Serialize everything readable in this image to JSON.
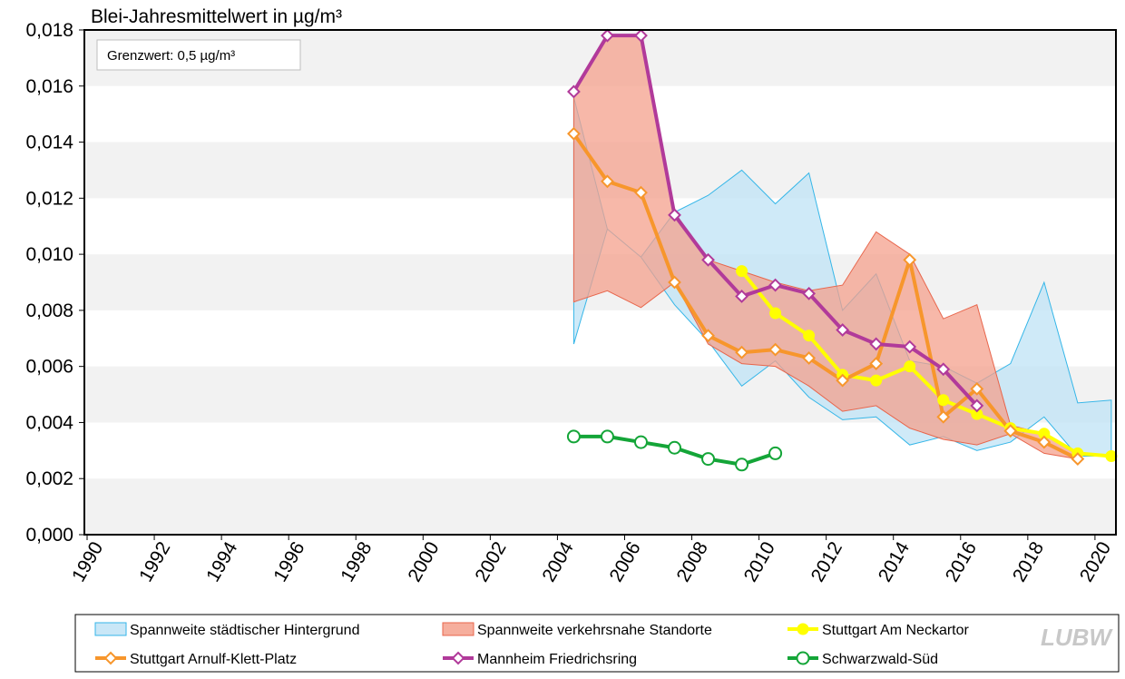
{
  "chart_data": {
    "type": "line",
    "title": "Blei-Jahresmittelwert in µg/m³",
    "annotation": "Grenzwert: 0,5 µg/m³",
    "logo": "LUBW",
    "xlabel": "",
    "ylabel": "",
    "xlim": [
      1990,
      2020
    ],
    "ylim": [
      0,
      0.018
    ],
    "x_ticks": [
      "1990",
      "1992",
      "1994",
      "1996",
      "1998",
      "2000",
      "2002",
      "2004",
      "2006",
      "2008",
      "2010",
      "2012",
      "2014",
      "2016",
      "2018",
      "2020"
    ],
    "y_ticks": [
      "0,000",
      "0,002",
      "0,004",
      "0,006",
      "0,008",
      "0,010",
      "0,012",
      "0,014",
      "0,016",
      "0,018"
    ],
    "grid": "alternating horizontal bands",
    "legend_position": "bottom",
    "ranges": [
      {
        "name": "Spannweite städtischer Hintergrund",
        "fill": "#bfe3f6",
        "stroke": "#35b6e8",
        "x": [
          2004,
          2005,
          2006,
          2007,
          2008,
          2009,
          2010,
          2011,
          2012,
          2013,
          2014,
          2015,
          2016,
          2017,
          2018,
          2019,
          2020
        ],
        "upper": [
          0.0156,
          0.0109,
          0.0099,
          0.0115,
          0.0121,
          0.013,
          0.0118,
          0.0129,
          0.008,
          0.0093,
          0.0062,
          0.006,
          0.0054,
          0.0061,
          0.009,
          0.0047,
          0.0048
        ],
        "lower": [
          0.0068,
          0.0109,
          0.0099,
          0.0082,
          0.0069,
          0.0053,
          0.0062,
          0.0049,
          0.0041,
          0.0042,
          0.0032,
          0.0035,
          0.003,
          0.0033,
          0.0042,
          0.0028,
          0.0028
        ]
      },
      {
        "name": "Spannweite verkehrsnahe Standorte",
        "fill": "#f4a08c",
        "stroke": "#e8664c",
        "x": [
          2004,
          2005,
          2006,
          2007,
          2008,
          2009,
          2010,
          2011,
          2012,
          2013,
          2014,
          2015,
          2016,
          2017,
          2018,
          2019
        ],
        "upper": [
          0.0158,
          0.0178,
          0.0178,
          0.0115,
          0.0098,
          0.0094,
          0.009,
          0.0087,
          0.0089,
          0.0108,
          0.01,
          0.0077,
          0.0082,
          0.0039,
          0.0036,
          0.0029
        ],
        "lower": [
          0.0083,
          0.0087,
          0.0081,
          0.009,
          0.0068,
          0.0061,
          0.006,
          0.0053,
          0.0044,
          0.0046,
          0.0038,
          0.0034,
          0.0032,
          0.0036,
          0.0029,
          0.0027
        ]
      }
    ],
    "series": [
      {
        "name": "Stuttgart Am Neckartor",
        "color": "#ffff00",
        "marker": "dot",
        "x": [
          2009,
          2010,
          2011,
          2012,
          2013,
          2014,
          2015,
          2016,
          2017,
          2018,
          2019,
          2020
        ],
        "values": [
          0.0094,
          0.0079,
          0.0071,
          0.0057,
          0.0055,
          0.006,
          0.0048,
          0.0043,
          0.0038,
          0.0036,
          0.0029,
          0.0028
        ]
      },
      {
        "name": "Stuttgart Arnulf-Klett-Platz",
        "color": "#f7962c",
        "marker": "diamond",
        "x": [
          2004,
          2005,
          2006,
          2007,
          2008,
          2009,
          2010,
          2011,
          2012,
          2013,
          2014,
          2015,
          2016,
          2017,
          2018,
          2019
        ],
        "values": [
          0.0143,
          0.0126,
          0.0122,
          0.009,
          0.0071,
          0.0065,
          0.0066,
          0.0063,
          0.0055,
          0.0061,
          0.0098,
          0.0042,
          0.0052,
          0.0037,
          0.0033,
          0.0027
        ]
      },
      {
        "name": "Mannheim Friedrichsring",
        "color": "#b13a9a",
        "marker": "diamond",
        "x": [
          2004,
          2005,
          2006,
          2007,
          2008,
          2009,
          2010,
          2011,
          2012,
          2013,
          2014,
          2015,
          2016
        ],
        "values": [
          0.0158,
          0.0178,
          0.0178,
          0.0114,
          0.0098,
          0.0085,
          0.0089,
          0.0086,
          0.0073,
          0.0068,
          0.0067,
          0.0059,
          0.0046
        ]
      },
      {
        "name": "Schwarzwald-Süd",
        "color": "#14a538",
        "marker": "circle",
        "x": [
          2004,
          2005,
          2006,
          2007,
          2008,
          2009,
          2010
        ],
        "values": [
          0.0035,
          0.0035,
          0.0033,
          0.0031,
          0.0027,
          0.0025,
          0.0029
        ]
      }
    ]
  }
}
